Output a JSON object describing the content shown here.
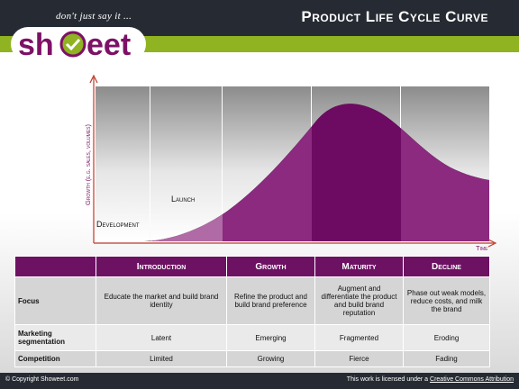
{
  "header": {
    "title": "Product Life Cycle Curve",
    "logo_text": "showeet",
    "tagline": "don't just say it ..."
  },
  "diagram": {
    "y_axis_label": "Growth (e.g. sales, volumes)",
    "x_axis_label": "Time",
    "stage_labels": {
      "development": "Development",
      "launch": "Launch"
    }
  },
  "table": {
    "columns": [
      "Introduction",
      "Growth",
      "Maturity",
      "Decline"
    ],
    "rows": [
      {
        "label": "Focus",
        "cells": [
          "Educate the market and build brand identity",
          "Refine the product and build brand preference",
          "Augment and differentiate the product  and build brand reputation",
          "Phase out weak models, reduce costs, and milk the brand"
        ]
      },
      {
        "label": "Marketing segmentation",
        "cells": [
          "Latent",
          "Emerging",
          "Fragmented",
          "Eroding"
        ]
      },
      {
        "label": "Competition",
        "cells": [
          "Limited",
          "Growing",
          "Fierce",
          "Fading"
        ]
      }
    ]
  },
  "footer": {
    "copyright": "© Copyright Showeet.com",
    "license_prefix": "This work is licensed under a ",
    "license_link": "Creative Commons Attribution"
  },
  "colors": {
    "accent": "#6d1163",
    "green": "#8fb321",
    "dark": "#262b33"
  }
}
